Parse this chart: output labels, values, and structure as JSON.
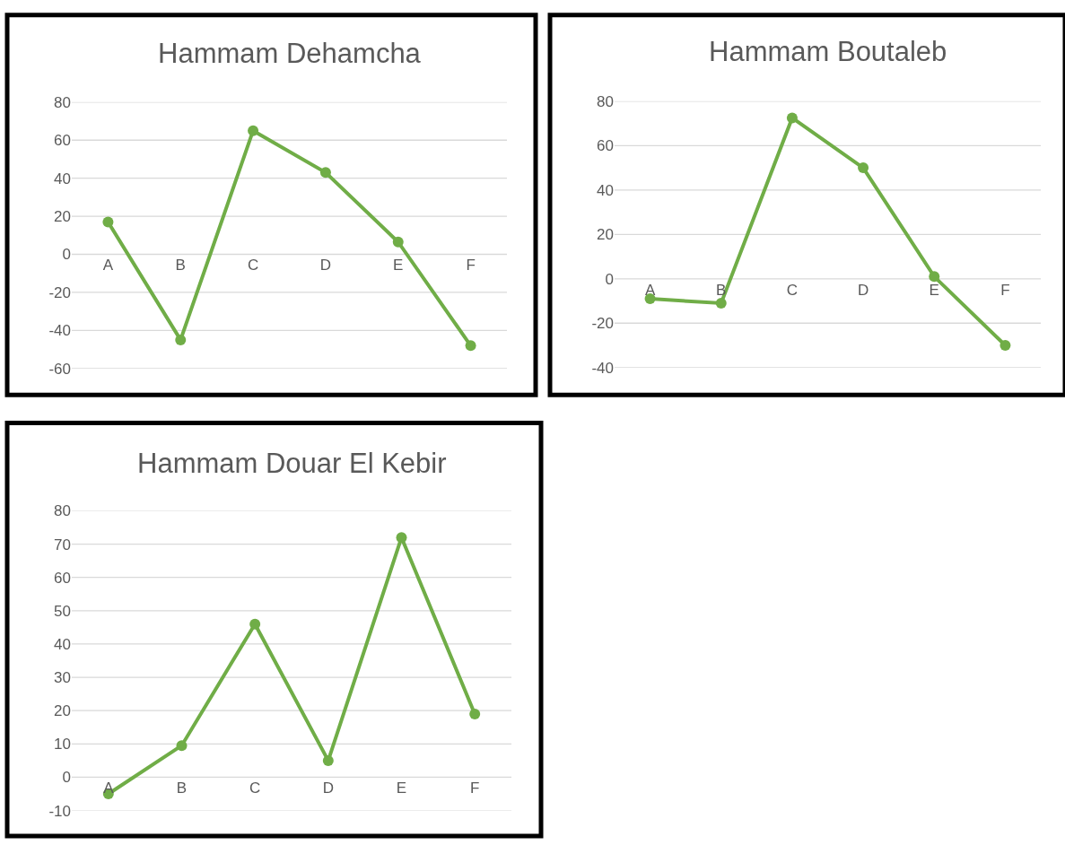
{
  "chart_data": [
    {
      "type": "line",
      "title": "Hammam Dehamcha",
      "categories": [
        "A",
        "B",
        "C",
        "D",
        "E",
        "F"
      ],
      "values": [
        17,
        -45,
        65,
        43,
        6.5,
        -48
      ],
      "color": "#70ad47",
      "ylim": [
        -60,
        80
      ],
      "yticks": [
        -60,
        -40,
        -20,
        0,
        20,
        40,
        60,
        80
      ],
      "grid": "y",
      "marker": "circle",
      "line_style": "solid"
    },
    {
      "type": "line",
      "title": "Hammam Boutaleb",
      "categories": [
        "A",
        "B",
        "C",
        "D",
        "E",
        "F"
      ],
      "values": [
        -9,
        -11,
        72.5,
        50,
        1,
        -30
      ],
      "color": "#70ad47",
      "ylim": [
        -40,
        80
      ],
      "yticks": [
        -40,
        -20,
        0,
        20,
        40,
        60,
        80
      ],
      "grid": "y",
      "marker": "circle",
      "line_style": "solid"
    },
    {
      "type": "line",
      "title": "Hammam Douar El Kebir",
      "categories": [
        "A",
        "B",
        "C",
        "D",
        "E",
        "F"
      ],
      "values": [
        -5,
        9.5,
        46,
        5,
        72,
        19
      ],
      "color": "#70ad47",
      "ylim": [
        -10,
        80
      ],
      "yticks": [
        -10,
        0,
        10,
        20,
        30,
        40,
        50,
        60,
        70,
        80
      ],
      "grid": "y",
      "marker": "circle",
      "line_style": "solid"
    }
  ]
}
